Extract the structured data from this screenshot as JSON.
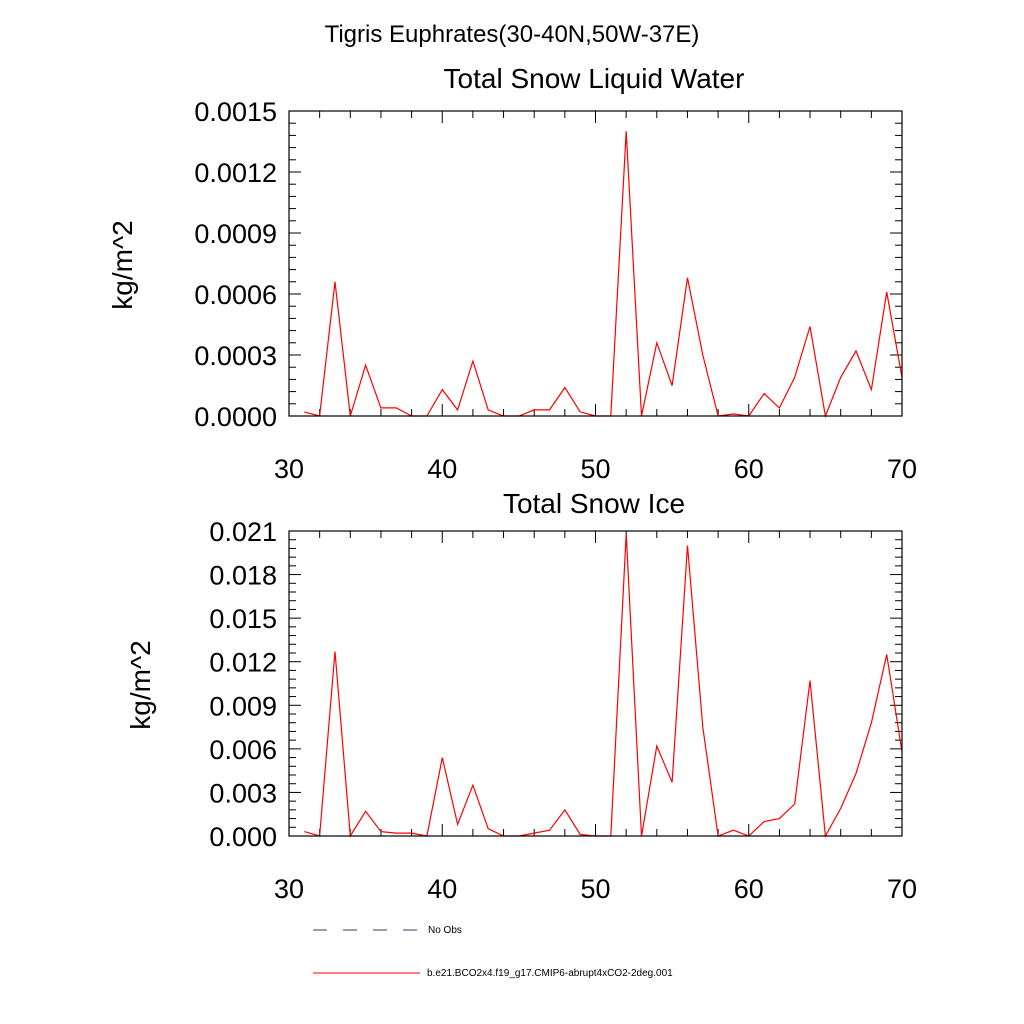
{
  "figure_title": "Tigris Euphrates(30-40N,50W-37E)",
  "colors": {
    "model": "#ff0000",
    "obs": "#3a3a6e",
    "axis": "#000000"
  },
  "legend": [
    {
      "label": "No Obs",
      "style": "dashed",
      "color": "#3a3a6e"
    },
    {
      "label": "b.e21.BCO2x4.f19_g17.CMIP6-abrupt4xCO2-2deg.001",
      "style": "solid",
      "color": "#ff0000"
    }
  ],
  "chart_data": [
    {
      "type": "line",
      "title": "Total Snow Liquid Water",
      "xlabel": "",
      "ylabel": "kg/m^2",
      "xlim": [
        30,
        70
      ],
      "ylim": [
        0,
        0.0015
      ],
      "xticks": [
        30,
        40,
        50,
        60,
        70
      ],
      "yticks": [
        0,
        0.0003,
        0.0006,
        0.0009,
        0.0012,
        0.0015
      ],
      "ytick_labels": [
        "0.0000",
        "0.0003",
        "0.0006",
        "0.0009",
        "0.0012",
        "0.0015"
      ],
      "x": [
        31,
        32,
        33,
        34,
        35,
        36,
        37,
        38,
        39,
        40,
        41,
        42,
        43,
        44,
        45,
        46,
        47,
        48,
        49,
        50,
        51,
        52,
        53,
        54,
        55,
        56,
        57,
        58,
        59,
        60,
        61,
        62,
        63,
        64,
        65,
        66,
        67,
        68,
        69,
        70
      ],
      "series": [
        {
          "name": "b.e21.BCO2x4.f19_g17.CMIP6-abrupt4xCO2-2deg.001",
          "values": [
            2e-05,
            0.0,
            0.00066,
            0.0,
            0.00025,
            4e-05,
            4e-05,
            0.0,
            0.0,
            0.00013,
            3e-05,
            0.00027,
            3e-05,
            0.0,
            0.0,
            3e-05,
            3e-05,
            0.00014,
            2e-05,
            0.0,
            0.0,
            0.0014,
            0.0,
            0.00036,
            0.00015,
            0.00068,
            0.0003,
            0.0,
            1e-05,
            0.0,
            0.00011,
            4e-05,
            0.00019,
            0.00044,
            0.0,
            0.00019,
            0.00032,
            0.00013,
            0.00061,
            0.00019
          ]
        }
      ]
    },
    {
      "type": "line",
      "title": "Total Snow Ice",
      "xlabel": "",
      "ylabel": "kg/m^2",
      "xlim": [
        30,
        70
      ],
      "ylim": [
        0,
        0.021
      ],
      "xticks": [
        30,
        40,
        50,
        60,
        70
      ],
      "yticks": [
        0,
        0.003,
        0.006,
        0.009,
        0.012,
        0.015,
        0.018,
        0.021
      ],
      "ytick_labels": [
        "0.000",
        "0.003",
        "0.006",
        "0.009",
        "0.012",
        "0.015",
        "0.018",
        "0.021"
      ],
      "x": [
        31,
        32,
        33,
        34,
        35,
        36,
        37,
        38,
        39,
        40,
        41,
        42,
        43,
        44,
        45,
        46,
        47,
        48,
        49,
        50,
        51,
        52,
        53,
        54,
        55,
        56,
        57,
        58,
        59,
        60,
        61,
        62,
        63,
        64,
        65,
        66,
        67,
        68,
        69,
        70
      ],
      "series": [
        {
          "name": "b.e21.BCO2x4.f19_g17.CMIP6-abrupt4xCO2-2deg.001",
          "values": [
            0.0003,
            0.0,
            0.0127,
            0.0,
            0.0017,
            0.0003,
            0.0002,
            0.0002,
            0.0,
            0.0054,
            0.0008,
            0.0035,
            0.0005,
            0.0,
            0.0,
            0.0002,
            0.0004,
            0.0018,
            0.0001,
            0.0,
            0.0,
            0.0208,
            0.0,
            0.0062,
            0.0037,
            0.02,
            0.0075,
            0.0,
            0.0004,
            0.0,
            0.001,
            0.0012,
            0.0022,
            0.0107,
            0.0,
            0.0019,
            0.0043,
            0.0078,
            0.0125,
            0.0058
          ]
        }
      ]
    }
  ]
}
